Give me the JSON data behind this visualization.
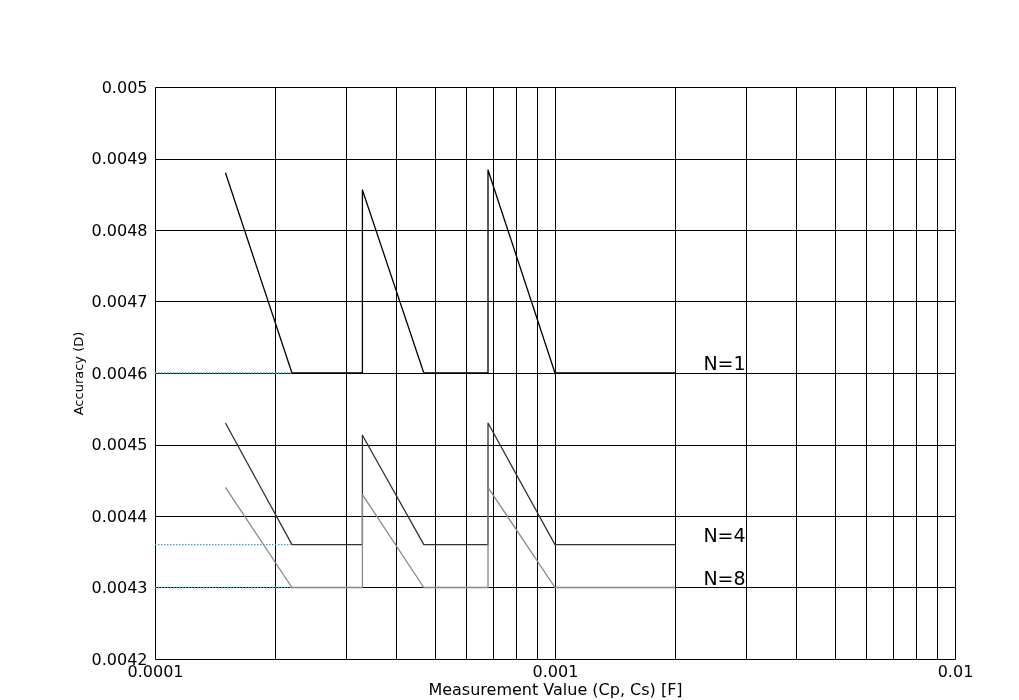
{
  "chart_data": {
    "type": "line",
    "xlabel": "Measurement Value (Cp, Cs) [F]",
    "ylabel": "Accuracy (D)",
    "log": "x",
    "xlim": [
      0.0001,
      0.01
    ],
    "ylim": [
      0.0042,
      0.005
    ],
    "xticks": [
      {
        "value": 0.0001,
        "label": "0.0001"
      },
      {
        "value": 0.0002,
        "label": null
      },
      {
        "value": 0.0003,
        "label": null
      },
      {
        "value": 0.0004,
        "label": null
      },
      {
        "value": 0.0005,
        "label": null
      },
      {
        "value": 0.0006,
        "label": null
      },
      {
        "value": 0.0007,
        "label": null
      },
      {
        "value": 0.0008,
        "label": null
      },
      {
        "value": 0.0009,
        "label": null
      },
      {
        "value": 0.001,
        "label": "0.001"
      },
      {
        "value": 0.002,
        "label": null
      },
      {
        "value": 0.003,
        "label": null
      },
      {
        "value": 0.004,
        "label": null
      },
      {
        "value": 0.005,
        "label": null
      },
      {
        "value": 0.006,
        "label": null
      },
      {
        "value": 0.007,
        "label": null
      },
      {
        "value": 0.008,
        "label": null
      },
      {
        "value": 0.009,
        "label": null
      },
      {
        "value": 0.01,
        "label": "0.01"
      }
    ],
    "yticks": [
      0.0042,
      0.0043,
      0.0044,
      0.0045,
      0.0046,
      0.0047,
      0.0048,
      0.0049,
      0.005
    ],
    "grid": true,
    "legend": false,
    "marker": "none",
    "series": [
      {
        "name": "N=1",
        "color": "#000000",
        "line_style": "solid",
        "x": [
          0.00015,
          0.00022,
          0.00033,
          0.00033,
          0.00047,
          0.00068,
          0.00068,
          0.001,
          0.002
        ],
        "values": [
          0.00488,
          0.0046,
          0.0046,
          0.004856,
          0.0046,
          0.0046,
          0.004884,
          0.0046,
          0.0046
        ]
      },
      {
        "name": "N=4",
        "color": "#333333",
        "line_style": "solid",
        "x": [
          0.00015,
          0.00022,
          0.00033,
          0.00033,
          0.00047,
          0.00068,
          0.00068,
          0.001,
          0.002
        ],
        "values": [
          0.00453,
          0.00436,
          0.00436,
          0.004513,
          0.00436,
          0.00436,
          0.00453,
          0.00436,
          0.00436
        ]
      },
      {
        "name": "N=8",
        "color": "#888888",
        "line_style": "solid",
        "x": [
          0.00015,
          0.00022,
          0.00033,
          0.00033,
          0.00047,
          0.00068,
          0.00068,
          0.001,
          0.002
        ],
        "values": [
          0.00444,
          0.0043,
          0.0043,
          0.00443,
          0.0043,
          0.0043,
          0.00444,
          0.0043,
          0.0043
        ]
      },
      {
        "color": "#3aa6c8",
        "line_style": "dotted",
        "x": [
          0.0001,
          0.00022
        ],
        "values": [
          0.0046,
          0.0046
        ]
      },
      {
        "color": "#3aa6c8",
        "line_style": "dotted",
        "x": [
          0.0001,
          0.00022
        ],
        "values": [
          0.00436,
          0.00436
        ]
      },
      {
        "color": "#3aa6c8",
        "line_style": "dotted",
        "x": [
          0.0001,
          0.00022
        ],
        "values": [
          0.0043,
          0.0043
        ]
      }
    ]
  }
}
